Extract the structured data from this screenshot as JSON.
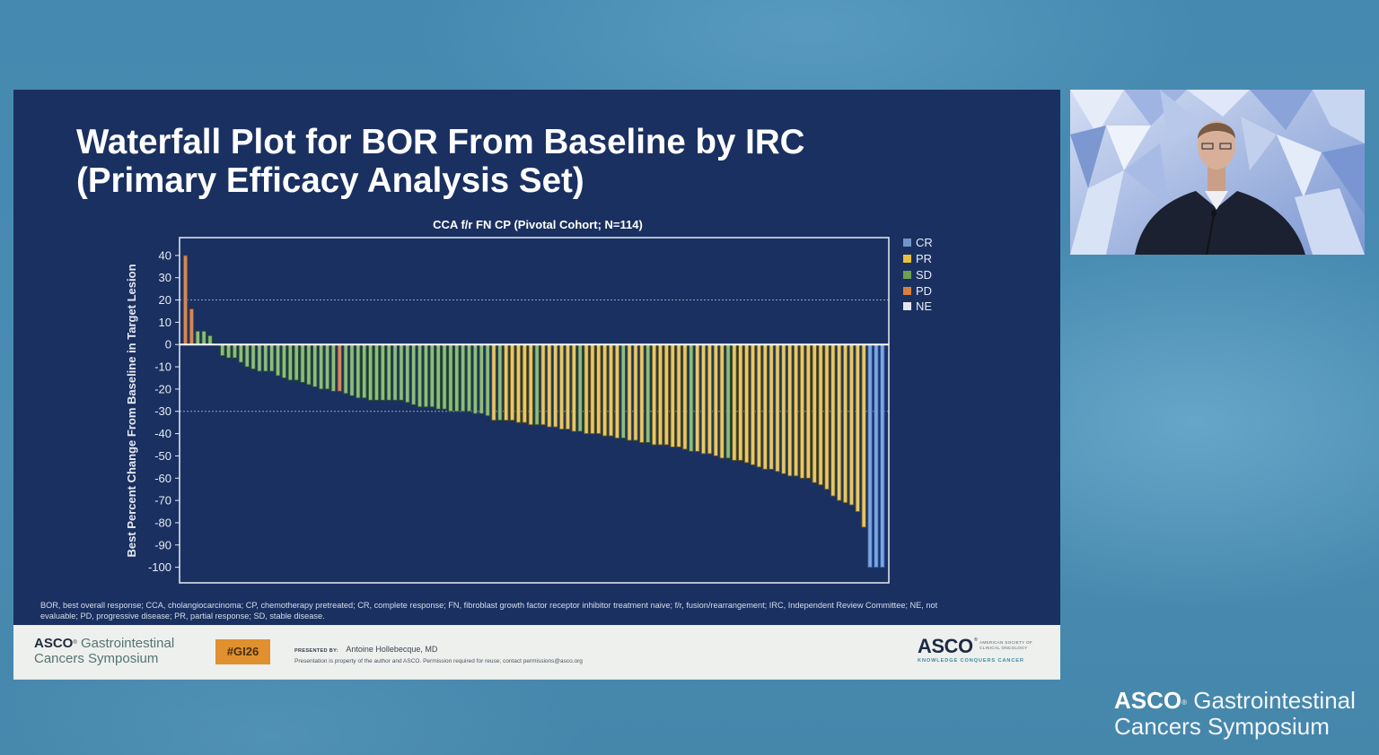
{
  "slide": {
    "title_lines": [
      "Waterfall Plot for BOR From Baseline by IRC",
      "(Primary Efficacy Analysis Set)"
    ],
    "footnote_lines": [
      "BOR, best overall response; CCA, cholangiocarcinoma; CP, chemotherapy pretreated; CR, complete response; FN, fibroblast growth factor receptor inhibitor treatment naive; f/r, fusion/rearrangement; IRC, Independent Review Committee; NE, not",
      "evaluable; PD, progressive disease; PR, partial response; SD, stable disease."
    ]
  },
  "chart_data": {
    "type": "bar",
    "title": "CCA f/r FN CP (Pivotal Cohort; N=114)",
    "xlabel": "",
    "ylabel": "Best Percent Change From Baseline in Target Lesion",
    "ylim": [
      -107,
      48
    ],
    "yticks": [
      40,
      30,
      20,
      10,
      0,
      -10,
      -20,
      -30,
      -40,
      -50,
      -60,
      -70,
      -80,
      -90,
      -100
    ],
    "reference_lines": [
      20,
      -30
    ],
    "grid": false,
    "legend": {
      "position": "right",
      "entries": [
        {
          "label": "CR",
          "color": "#6f95cc"
        },
        {
          "label": "PR",
          "color": "#e8bf3e"
        },
        {
          "label": "SD",
          "color": "#6ea04f"
        },
        {
          "label": "PD",
          "color": "#d9803e"
        },
        {
          "label": "NE",
          "color": "#e4e6ee"
        }
      ]
    },
    "bar_colors": {
      "CR": "#7fa6de",
      "PR": "#e4c86a",
      "SD": "#8fbc7f",
      "PD": "#cf8a5c",
      "NE": "#e6e9f0"
    },
    "bar_edges": {
      "CR": "#2f5fa8",
      "PR": "#6e5a16",
      "SD": "#2f5a2a",
      "PD": "#7a3a1a",
      "NE": "#8a8f99"
    },
    "values": [
      40,
      16,
      6,
      6,
      4,
      0,
      -5,
      -6,
      -6,
      -8,
      -10,
      -11,
      -12,
      -12,
      -12,
      -14,
      -15,
      -16,
      -16,
      -17,
      -18,
      -19,
      -20,
      -20,
      -21,
      -21,
      -22,
      -23,
      -24,
      -24,
      -25,
      -25,
      -25,
      -25,
      -25,
      -25,
      -26,
      -27,
      -28,
      -28,
      -28,
      -29,
      -29,
      -30,
      -30,
      -30,
      -30,
      -31,
      -31,
      -32,
      -34,
      -34,
      -34,
      -34,
      -35,
      -35,
      -36,
      -36,
      -36,
      -37,
      -37,
      -38,
      -38,
      -39,
      -39,
      -40,
      -40,
      -40,
      -41,
      -41,
      -42,
      -42,
      -43,
      -43,
      -44,
      -44,
      -45,
      -45,
      -45,
      -46,
      -46,
      -47,
      -48,
      -48,
      -49,
      -49,
      -50,
      -51,
      -51,
      -52,
      -52,
      -53,
      -54,
      -55,
      -56,
      -56,
      -57,
      -58,
      -59,
      -59,
      -60,
      -60,
      -62,
      -63,
      -65,
      -68,
      -70,
      -71,
      -72,
      -75,
      -82,
      -100,
      -100,
      -100
    ],
    "response": [
      "PD",
      "PD",
      "SD",
      "SD",
      "SD",
      "SD",
      "SD",
      "SD",
      "SD",
      "SD",
      "SD",
      "SD",
      "SD",
      "SD",
      "SD",
      "SD",
      "SD",
      "SD",
      "SD",
      "SD",
      "SD",
      "SD",
      "SD",
      "SD",
      "SD",
      "PD",
      "SD",
      "SD",
      "SD",
      "SD",
      "SD",
      "SD",
      "SD",
      "SD",
      "SD",
      "SD",
      "SD",
      "SD",
      "SD",
      "SD",
      "SD",
      "SD",
      "SD",
      "SD",
      "SD",
      "SD",
      "SD",
      "SD",
      "SD",
      "SD",
      "PR",
      "SD",
      "PR",
      "PR",
      "PR",
      "PR",
      "PR",
      "SD",
      "PR",
      "PR",
      "PR",
      "PR",
      "PR",
      "PR",
      "SD",
      "PR",
      "PR",
      "PR",
      "PR",
      "PR",
      "PR",
      "SD",
      "PR",
      "PR",
      "PR",
      "SD",
      "PR",
      "PR",
      "PR",
      "PR",
      "PR",
      "PR",
      "SD",
      "PR",
      "PR",
      "PR",
      "PR",
      "PR",
      "SD",
      "PR",
      "PR",
      "PR",
      "PR",
      "PR",
      "PR",
      "PR",
      "PR",
      "PR",
      "PR",
      "PR",
      "PR",
      "PR",
      "PR",
      "PR",
      "PR",
      "PR",
      "PR",
      "PR",
      "PR",
      "PR",
      "PR",
      "CR",
      "CR",
      "CR"
    ]
  },
  "slide_footer": {
    "logo": {
      "asco": "ASCO",
      "registered": "®",
      "line1_rest": "Gastrointestinal",
      "line2": "Cancers Symposium"
    },
    "hashtag": "#GI26",
    "presented_by_label": "PRESENTED BY:",
    "presenter": "Antoine Hollebecque, MD",
    "permission_notice": "Presentation is property of the author and ASCO. Permission required for reuse; contact permissions@asco.org",
    "asco_logo": {
      "wordmark": "ASCO",
      "registered": "®",
      "society_line1": "AMERICAN SOCIETY OF",
      "society_line2": "CLINICAL ONCOLOGY",
      "tagline": "KNOWLEDGE CONQUERS CANCER"
    }
  },
  "broadcast_branding": {
    "asco": "ASCO",
    "registered": "®",
    "line1_rest": "Gastrointestinal",
    "line2": "Cancers Symposium"
  }
}
